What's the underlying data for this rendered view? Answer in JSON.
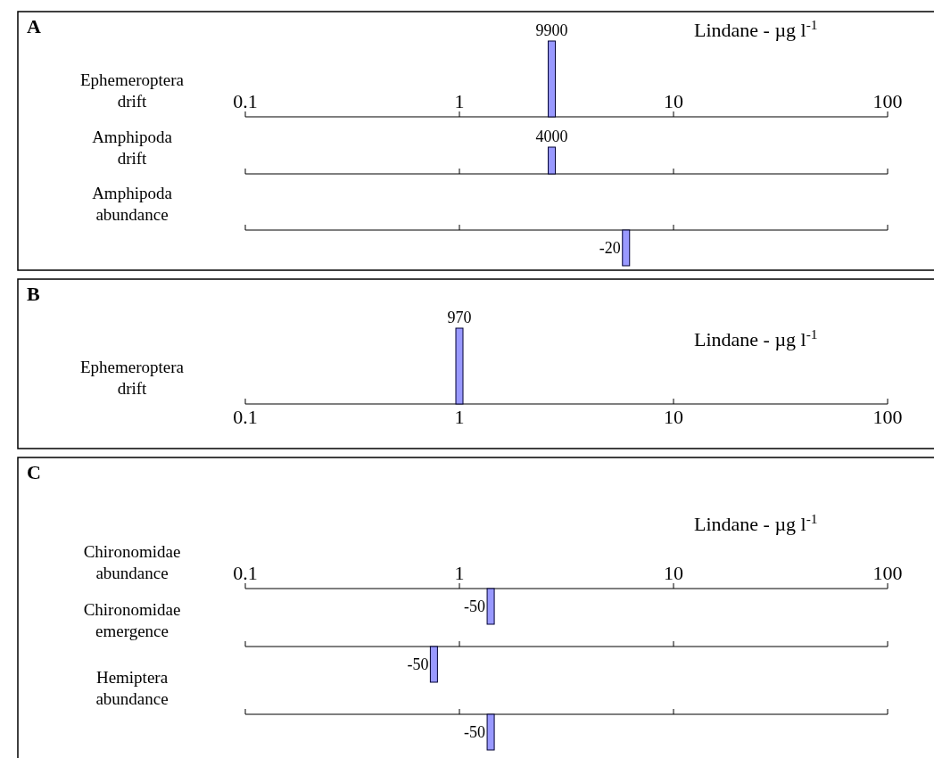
{
  "chart_data": [
    {
      "type": "bar",
      "annotations": [
        "A"
      ],
      "xlabel": "Lindane - µg l$^{-1}$",
      "ylabel": "Ephemeroptera drift",
      "x": [
        2.7
      ],
      "values": [
        9900
      ],
      "data_labels": true,
      "log": "x",
      "xlim": [
        0.1,
        100
      ],
      "xticks": [
        0.1,
        1,
        10,
        100
      ],
      "color": "#9999ff"
    },
    {
      "type": "bar",
      "ylabel": "Amphipoda drift",
      "x": [
        2.7
      ],
      "values": [
        4000
      ],
      "data_labels": true,
      "log": "x",
      "xlim": [
        0.1,
        100
      ],
      "xticks": [
        0.1,
        1,
        10,
        100
      ],
      "tick_labels": false,
      "color": "#9999ff"
    },
    {
      "type": "bar",
      "ylabel": "Amphipoda abundance",
      "x": [
        6
      ],
      "values": [
        -20
      ],
      "data_labels": true,
      "log": "x",
      "xlim": [
        0.1,
        100
      ],
      "xticks": [
        0.1,
        1,
        10,
        100
      ],
      "tick_labels": false,
      "color": "#9999ff"
    },
    {
      "type": "bar",
      "annotations": [
        "B"
      ],
      "xlabel": "Lindane - µg l$^{-1}$",
      "ylabel": "Ephemeroptera drift",
      "x": [
        1
      ],
      "values": [
        970
      ],
      "data_labels": true,
      "log": "x",
      "xlim": [
        0.1,
        100
      ],
      "xticks": [
        0.1,
        1,
        10,
        100
      ],
      "color": "#9999ff"
    },
    {
      "type": "bar",
      "annotations": [
        "C"
      ],
      "xlabel": "Lindane - µg l$^{-1}$",
      "ylabel": "Chironomidae abundance",
      "x": [
        1.4
      ],
      "values": [
        -50
      ],
      "data_labels": true,
      "log": "x",
      "xlim": [
        0.1,
        100
      ],
      "xticks": [
        0.1,
        1,
        10,
        100
      ],
      "color": "#9999ff"
    },
    {
      "type": "bar",
      "ylabel": "Chironomidae emergence",
      "x": [
        0.76
      ],
      "values": [
        -50
      ],
      "data_labels": true,
      "log": "x",
      "xlim": [
        0.1,
        100
      ],
      "xticks": [
        0.1,
        1,
        10,
        100
      ],
      "tick_labels": false,
      "color": "#9999ff"
    },
    {
      "type": "bar",
      "ylabel": "Hemiptera abundance",
      "x": [
        1.4
      ],
      "values": [
        -50
      ],
      "data_labels": true,
      "log": "x",
      "xlim": [
        0.1,
        100
      ],
      "xticks": [
        0.1,
        1,
        10,
        100
      ],
      "tick_labels": false,
      "color": "#9999ff"
    }
  ]
}
